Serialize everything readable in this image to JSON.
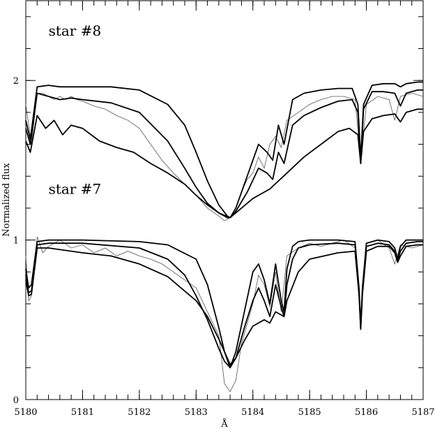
{
  "chart_data": {
    "type": "line",
    "xlabel": "Å",
    "ylabel": "Normalized flux",
    "xlim": [
      5180,
      5187
    ],
    "ylim": [
      0,
      2.5
    ],
    "x_ticks": [
      5180,
      5181,
      5182,
      5183,
      5184,
      5185,
      5186,
      5187
    ],
    "y_ticks": [
      0,
      1,
      2
    ],
    "annotations": [
      {
        "text": "star #8",
        "x": 5180.4,
        "y": 2.28
      },
      {
        "text": "star #7",
        "x": 5180.4,
        "y": 1.29
      }
    ],
    "grid": false,
    "series": [
      {
        "style": "noisy-thin-gray",
        "x": [
          5180.0,
          5180.1,
          5180.2,
          5180.3,
          5180.4,
          5180.5,
          5180.6,
          5180.7,
          5180.8,
          5180.9,
          5181.0,
          5181.2,
          5181.4,
          5181.6,
          5181.8,
          5182.0,
          5182.2,
          5182.4,
          5182.6,
          5182.8,
          5183.0,
          5183.2,
          5183.4,
          5183.5,
          5183.6,
          5183.7,
          5183.8,
          5183.9,
          5184.0,
          5184.1,
          5184.2,
          5184.3,
          5184.4,
          5184.5,
          5184.6,
          5184.8,
          5185.0,
          5185.2,
          5185.4,
          5185.6,
          5185.8,
          5185.9,
          5186.0,
          5186.2,
          5186.4,
          5186.5,
          5186.6,
          5186.8,
          5187.0
        ],
        "values": [
          1.85,
          1.6,
          1.92,
          1.92,
          1.9,
          1.88,
          1.9,
          1.88,
          1.9,
          1.88,
          1.87,
          1.84,
          1.82,
          1.78,
          1.75,
          1.7,
          1.6,
          1.5,
          1.42,
          1.35,
          1.28,
          1.2,
          1.15,
          1.12,
          1.14,
          1.2,
          1.3,
          1.38,
          1.42,
          1.52,
          1.45,
          1.6,
          1.65,
          1.58,
          1.75,
          1.8,
          1.85,
          1.88,
          1.9,
          1.9,
          1.88,
          1.5,
          1.85,
          1.9,
          1.88,
          1.75,
          1.9,
          1.92,
          1.9
        ]
      },
      {
        "style": "model",
        "x": [
          5180.0,
          5180.08,
          5180.2,
          5180.4,
          5180.6,
          5180.8,
          5181.0,
          5181.5,
          5182.0,
          5182.5,
          5182.8,
          5183.0,
          5183.2,
          5183.4,
          5183.55,
          5183.6,
          5183.7,
          5183.9,
          5184.1,
          5184.25,
          5184.35,
          5184.45,
          5184.55,
          5184.7,
          5184.9,
          5185.2,
          5185.5,
          5185.75,
          5185.85,
          5185.9,
          5185.95,
          5186.1,
          5186.3,
          5186.5,
          5186.6,
          5186.7,
          5186.9,
          5187.0
        ],
        "values": [
          1.75,
          1.63,
          1.96,
          1.97,
          1.96,
          1.96,
          1.96,
          1.96,
          1.94,
          1.85,
          1.72,
          1.55,
          1.37,
          1.22,
          1.15,
          1.14,
          1.2,
          1.4,
          1.6,
          1.55,
          1.5,
          1.72,
          1.6,
          1.88,
          1.92,
          1.94,
          1.95,
          1.95,
          1.85,
          1.51,
          1.85,
          1.97,
          1.98,
          1.98,
          1.96,
          1.98,
          1.99,
          1.99
        ]
      },
      {
        "style": "model",
        "x": [
          5180.0,
          5180.08,
          5180.2,
          5180.4,
          5180.6,
          5180.8,
          5181.0,
          5181.5,
          5182.0,
          5182.5,
          5182.8,
          5183.0,
          5183.2,
          5183.4,
          5183.55,
          5183.6,
          5183.7,
          5183.9,
          5184.1,
          5184.25,
          5184.35,
          5184.45,
          5184.55,
          5184.7,
          5184.9,
          5185.2,
          5185.5,
          5185.75,
          5185.85,
          5185.9,
          5185.95,
          5186.1,
          5186.3,
          5186.5,
          5186.6,
          5186.7,
          5186.9,
          5187.0
        ],
        "values": [
          1.7,
          1.6,
          1.92,
          1.9,
          1.88,
          1.89,
          1.88,
          1.86,
          1.8,
          1.62,
          1.45,
          1.33,
          1.23,
          1.17,
          1.14,
          1.14,
          1.18,
          1.3,
          1.45,
          1.42,
          1.38,
          1.55,
          1.48,
          1.72,
          1.78,
          1.83,
          1.87,
          1.88,
          1.8,
          1.48,
          1.82,
          1.93,
          1.93,
          1.92,
          1.84,
          1.92,
          1.94,
          1.94
        ]
      },
      {
        "style": "model",
        "x": [
          5180.0,
          5180.08,
          5180.2,
          5180.35,
          5180.5,
          5180.65,
          5180.8,
          5181.0,
          5181.3,
          5181.6,
          5181.9,
          5182.2,
          5182.5,
          5182.8,
          5183.0,
          5183.2,
          5183.4,
          5183.6,
          5183.8,
          5184.0,
          5184.3,
          5184.6,
          5184.9,
          5185.2,
          5185.5,
          5185.7,
          5185.85,
          5185.9,
          5185.95,
          5186.1,
          5186.3,
          5186.5,
          5186.6,
          5186.7,
          5186.9,
          5187.0
        ],
        "values": [
          1.62,
          1.55,
          1.78,
          1.7,
          1.75,
          1.66,
          1.72,
          1.7,
          1.62,
          1.58,
          1.55,
          1.48,
          1.42,
          1.35,
          1.28,
          1.22,
          1.17,
          1.14,
          1.2,
          1.26,
          1.32,
          1.42,
          1.52,
          1.6,
          1.68,
          1.7,
          1.66,
          1.48,
          1.68,
          1.76,
          1.78,
          1.79,
          1.74,
          1.8,
          1.82,
          1.82
        ]
      },
      {
        "style": "noisy-thin-gray",
        "x": [
          5180.0,
          5180.05,
          5180.1,
          5180.2,
          5180.3,
          5180.4,
          5180.6,
          5180.8,
          5181.0,
          5181.2,
          5181.4,
          5181.6,
          5181.8,
          5182.0,
          5182.2,
          5182.4,
          5182.6,
          5182.8,
          5183.0,
          5183.2,
          5183.4,
          5183.5,
          5183.6,
          5183.7,
          5183.8,
          5184.0,
          5184.1,
          5184.2,
          5184.3,
          5184.4,
          5184.5,
          5184.6,
          5184.8,
          5185.0,
          5185.2,
          5185.4,
          5185.6,
          5185.8,
          5185.9,
          5186.0,
          5186.2,
          5186.4,
          5186.5,
          5186.6,
          5186.8,
          5187.0
        ],
        "values": [
          0.9,
          0.62,
          0.65,
          1.02,
          0.92,
          0.96,
          1.0,
          0.95,
          0.97,
          0.92,
          0.95,
          0.9,
          0.93,
          0.9,
          0.88,
          0.85,
          0.8,
          0.75,
          0.7,
          0.55,
          0.4,
          0.1,
          0.05,
          0.12,
          0.35,
          0.6,
          0.78,
          0.72,
          0.58,
          0.8,
          0.55,
          0.9,
          0.95,
          0.98,
          0.96,
          0.98,
          1.0,
          0.95,
          0.5,
          0.98,
          1.0,
          0.95,
          0.85,
          0.97,
          0.95,
          0.97
        ]
      },
      {
        "style": "model",
        "x": [
          5180.0,
          5180.05,
          5180.1,
          5180.2,
          5180.4,
          5181.0,
          5182.0,
          5182.5,
          5183.0,
          5183.2,
          5183.4,
          5183.5,
          5183.6,
          5183.7,
          5183.85,
          5184.0,
          5184.1,
          5184.2,
          5184.3,
          5184.4,
          5184.5,
          5184.55,
          5184.6,
          5184.7,
          5184.8,
          5185.0,
          5185.5,
          5185.8,
          5185.87,
          5185.9,
          5185.93,
          5186.0,
          5186.2,
          5186.4,
          5186.5,
          5186.55,
          5186.6,
          5186.7,
          5186.9,
          5187.0
        ],
        "values": [
          0.82,
          0.7,
          0.72,
          0.99,
          1.0,
          1.0,
          0.99,
          0.97,
          0.88,
          0.72,
          0.45,
          0.3,
          0.2,
          0.3,
          0.55,
          0.8,
          0.85,
          0.75,
          0.6,
          0.85,
          0.62,
          0.55,
          0.82,
          0.96,
          0.99,
          1.0,
          1.0,
          0.99,
          0.7,
          0.46,
          0.7,
          0.98,
          1.0,
          0.99,
          0.95,
          0.88,
          0.96,
          1.0,
          1.0,
          1.0
        ]
      },
      {
        "style": "model",
        "x": [
          5180.0,
          5180.05,
          5180.1,
          5180.2,
          5180.4,
          5181.0,
          5182.0,
          5182.5,
          5182.8,
          5183.0,
          5183.2,
          5183.4,
          5183.5,
          5183.6,
          5183.7,
          5183.85,
          5184.0,
          5184.1,
          5184.2,
          5184.3,
          5184.4,
          5184.5,
          5184.55,
          5184.6,
          5184.7,
          5184.8,
          5185.0,
          5185.5,
          5185.8,
          5185.87,
          5185.9,
          5185.93,
          5186.0,
          5186.2,
          5186.4,
          5186.5,
          5186.55,
          5186.6,
          5186.7,
          5186.9,
          5187.0
        ],
        "values": [
          0.78,
          0.67,
          0.68,
          0.97,
          0.98,
          0.98,
          0.95,
          0.88,
          0.78,
          0.65,
          0.5,
          0.32,
          0.24,
          0.2,
          0.26,
          0.45,
          0.62,
          0.7,
          0.62,
          0.52,
          0.72,
          0.58,
          0.52,
          0.72,
          0.88,
          0.95,
          0.97,
          0.98,
          0.97,
          0.68,
          0.45,
          0.68,
          0.96,
          0.98,
          0.97,
          0.93,
          0.87,
          0.93,
          0.98,
          0.99,
          0.99
        ]
      },
      {
        "style": "model",
        "x": [
          5180.0,
          5180.05,
          5180.1,
          5180.2,
          5180.4,
          5181.0,
          5181.5,
          5182.0,
          5182.5,
          5183.0,
          5183.2,
          5183.4,
          5183.5,
          5183.6,
          5183.7,
          5183.85,
          5184.0,
          5184.2,
          5184.3,
          5184.4,
          5184.5,
          5184.55,
          5184.6,
          5184.8,
          5185.0,
          5185.5,
          5185.8,
          5185.87,
          5185.9,
          5185.93,
          5186.0,
          5186.2,
          5186.4,
          5186.5,
          5186.55,
          5186.6,
          5186.7,
          5186.9,
          5187.0
        ],
        "values": [
          0.75,
          0.65,
          0.66,
          0.95,
          0.95,
          0.92,
          0.9,
          0.85,
          0.77,
          0.62,
          0.52,
          0.38,
          0.3,
          0.22,
          0.26,
          0.37,
          0.46,
          0.5,
          0.48,
          0.55,
          0.53,
          0.52,
          0.62,
          0.8,
          0.88,
          0.92,
          0.93,
          0.66,
          0.44,
          0.66,
          0.93,
          0.96,
          0.96,
          0.92,
          0.86,
          0.9,
          0.96,
          0.97,
          0.97
        ]
      }
    ]
  }
}
